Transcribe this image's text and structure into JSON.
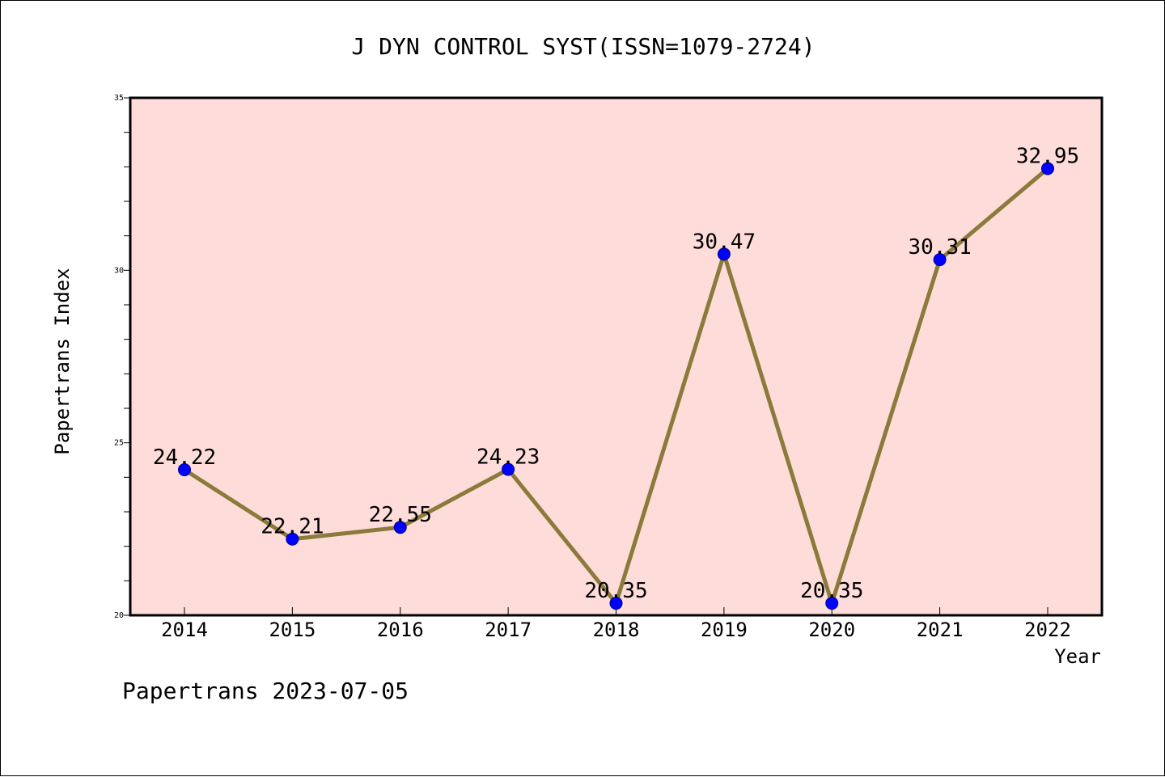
{
  "chart_data": {
    "type": "line",
    "title": "J DYN CONTROL SYST(ISSN=1079-2724)",
    "xlabel": "Year",
    "ylabel": "Papertrans Index",
    "categories": [
      "2014",
      "2015",
      "2016",
      "2017",
      "2018",
      "2019",
      "2020",
      "2021",
      "2022"
    ],
    "series": [
      {
        "values": [
          24.22,
          22.21,
          22.55,
          24.23,
          20.35,
          30.47,
          20.35,
          30.31,
          32.95
        ],
        "labels": [
          "24.22",
          "22.21",
          "22.55",
          "24.23",
          "20.35",
          "30.47",
          "20.35",
          "30.31",
          "32.95"
        ]
      }
    ],
    "ylim": [
      20,
      35
    ],
    "yticks": [
      "20",
      "25",
      "30",
      "35"
    ],
    "grid": false,
    "legend": "none",
    "plot_background": "#fddcd9",
    "line_color": "#8b7a3a",
    "marker_color": "#0000ff"
  },
  "footer": "Papertrans 2023-07-05"
}
